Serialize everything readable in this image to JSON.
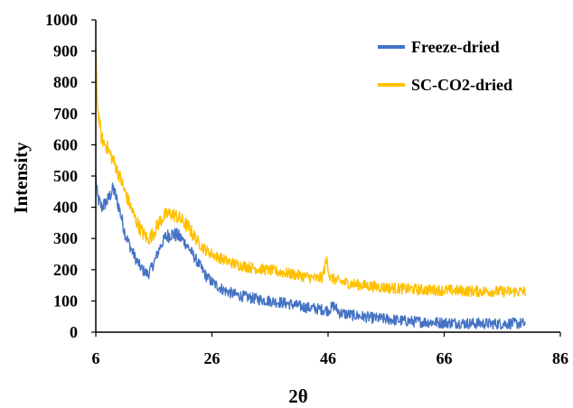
{
  "chart_data": {
    "type": "line",
    "title": "",
    "xlabel": "2θ",
    "ylabel": "Intensity",
    "xlim": [
      6,
      86
    ],
    "ylim": [
      0,
      1000
    ],
    "x_ticks": [
      6,
      26,
      46,
      66,
      86
    ],
    "y_ticks": [
      0,
      100,
      200,
      300,
      400,
      500,
      600,
      700,
      800,
      900,
      1000
    ],
    "x_tick_labels": [
      "6",
      "26",
      "46",
      "66",
      "86"
    ],
    "y_tick_labels": [
      "0",
      "100",
      "200",
      "300",
      "400",
      "500",
      "600",
      "700",
      "800",
      "900",
      "1000"
    ],
    "grid": false,
    "legend_position": "top-right",
    "series": [
      {
        "name": "Freeze-dried",
        "color": "#4472C4",
        "noise": 18,
        "points": [
          [
            6,
            500
          ],
          [
            6.3,
            430
          ],
          [
            7,
            400
          ],
          [
            8,
            420
          ],
          [
            9,
            460
          ],
          [
            10,
            400
          ],
          [
            11,
            320
          ],
          [
            12,
            270
          ],
          [
            13,
            230
          ],
          [
            14,
            200
          ],
          [
            15,
            185
          ],
          [
            16,
            220
          ],
          [
            17,
            270
          ],
          [
            18,
            305
          ],
          [
            19,
            315
          ],
          [
            20,
            310
          ],
          [
            21,
            295
          ],
          [
            22,
            270
          ],
          [
            23,
            240
          ],
          [
            24,
            210
          ],
          [
            25,
            180
          ],
          [
            26,
            160
          ],
          [
            28,
            135
          ],
          [
            30,
            120
          ],
          [
            32,
            112
          ],
          [
            34,
            105
          ],
          [
            36,
            100
          ],
          [
            38,
            95
          ],
          [
            40,
            88
          ],
          [
            42,
            80
          ],
          [
            44,
            75
          ],
          [
            46,
            70
          ],
          [
            47,
            85
          ],
          [
            48,
            62
          ],
          [
            50,
            55
          ],
          [
            52,
            50
          ],
          [
            54,
            45
          ],
          [
            56,
            42
          ],
          [
            58,
            38
          ],
          [
            60,
            35
          ],
          [
            62,
            33
          ],
          [
            64,
            32
          ],
          [
            66,
            30
          ],
          [
            68,
            30
          ],
          [
            70,
            28
          ],
          [
            72,
            28
          ],
          [
            74,
            27
          ],
          [
            76,
            27
          ],
          [
            78,
            28
          ],
          [
            80,
            28
          ]
        ]
      },
      {
        "name": "SC-CO2-dried",
        "color": "#FFC000",
        "noise": 18,
        "points": [
          [
            6,
            880
          ],
          [
            6.3,
            720
          ],
          [
            7,
            620
          ],
          [
            8,
            590
          ],
          [
            9,
            550
          ],
          [
            10,
            505
          ],
          [
            11,
            450
          ],
          [
            12,
            400
          ],
          [
            13,
            355
          ],
          [
            14,
            320
          ],
          [
            15,
            295
          ],
          [
            16,
            320
          ],
          [
            17,
            355
          ],
          [
            18,
            375
          ],
          [
            19,
            380
          ],
          [
            20,
            370
          ],
          [
            21,
            355
          ],
          [
            22,
            335
          ],
          [
            23,
            305
          ],
          [
            24,
            280
          ],
          [
            25,
            262
          ],
          [
            26,
            250
          ],
          [
            28,
            232
          ],
          [
            30,
            218
          ],
          [
            32,
            210
          ],
          [
            34,
            203
          ],
          [
            36,
            198
          ],
          [
            38,
            192
          ],
          [
            40,
            185
          ],
          [
            42,
            178
          ],
          [
            44,
            172
          ],
          [
            45,
            175
          ],
          [
            45.8,
            235
          ],
          [
            46.3,
            175
          ],
          [
            48,
            162
          ],
          [
            50,
            155
          ],
          [
            52,
            150
          ],
          [
            54,
            146
          ],
          [
            56,
            143
          ],
          [
            58,
            140
          ],
          [
            60,
            138
          ],
          [
            62,
            136
          ],
          [
            64,
            135
          ],
          [
            66,
            134
          ],
          [
            68,
            133
          ],
          [
            70,
            132
          ],
          [
            72,
            131
          ],
          [
            74,
            131
          ],
          [
            76,
            130
          ],
          [
            78,
            130
          ],
          [
            80,
            130
          ]
        ]
      }
    ]
  }
}
